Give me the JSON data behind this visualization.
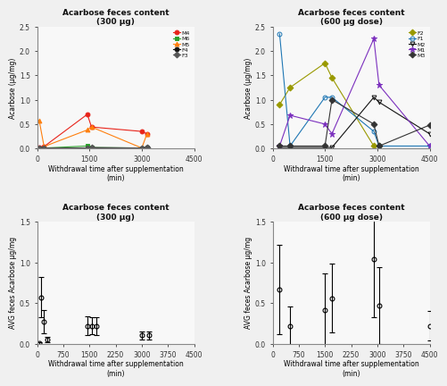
{
  "fig_bg": "#f0f0f0",
  "top_left": {
    "title": "Acarbose feces content\n(300 µg)",
    "xlabel": "Withdrawal time after supplementation\n(min)",
    "ylabel": "Acarbose (µg/mg)",
    "xlim": [
      0,
      4500
    ],
    "ylim": [
      0,
      2.5
    ],
    "yticks": [
      0.0,
      0.5,
      1.0,
      1.5,
      2.0,
      2.5
    ],
    "xticks": [
      0,
      1500,
      3000,
      4500
    ],
    "animals": {
      "M4": {
        "color": "#e8231a",
        "marker": "o",
        "filled": true,
        "x": [
          60,
          200,
          1440,
          1560,
          3000,
          3150
        ],
        "y": [
          0.02,
          0.04,
          0.7,
          0.44,
          0.35,
          0.3
        ]
      },
      "M6": {
        "color": "#2ca02c",
        "marker": "s",
        "filled": true,
        "x": [
          60,
          200,
          1440,
          1560,
          3000,
          3150
        ],
        "y": [
          0.01,
          0.01,
          0.05,
          0.02,
          0.01,
          0.02
        ]
      },
      "M5": {
        "color": "#ff7f0e",
        "marker": "^",
        "filled": true,
        "x": [
          60,
          200,
          1440,
          1560,
          3000,
          3150
        ],
        "y": [
          0.58,
          0.04,
          0.38,
          0.44,
          0.01,
          0.3
        ]
      },
      "F4": {
        "color": "#111111",
        "marker": "o",
        "filled": true,
        "x": [
          60,
          200,
          1440,
          1560,
          3000,
          3150
        ],
        "y": [
          0.01,
          0.01,
          0.01,
          0.01,
          0.01,
          0.02
        ]
      },
      "F3": {
        "color": "#555555",
        "marker": "D",
        "filled": true,
        "x": [
          60,
          200,
          1440,
          1560,
          3000,
          3150
        ],
        "y": [
          0.01,
          0.01,
          0.01,
          0.02,
          0.01,
          0.02
        ]
      }
    }
  },
  "top_right": {
    "title": "Acarbose feces content\n(600 µg dose)",
    "xlabel": "Withdrawal time after supplementation\n(min)",
    "ylabel": "Acarbose (µg/mg)",
    "xlim": [
      0,
      4500
    ],
    "ylim": [
      0,
      2.5
    ],
    "yticks": [
      0.0,
      0.5,
      1.0,
      1.5,
      2.0,
      2.5
    ],
    "xticks": [
      0,
      1500,
      3000,
      4500
    ],
    "animals": {
      "F2": {
        "color": "#999900",
        "marker": "D",
        "filled": true,
        "x": [
          200,
          500,
          1500,
          1700,
          2900,
          3050
        ],
        "y": [
          0.9,
          1.25,
          1.75,
          1.45,
          0.05,
          0.05
        ]
      },
      "F1": {
        "color": "#1f77b4",
        "marker": "o",
        "filled": false,
        "x": [
          200,
          500,
          1500,
          1700,
          2900,
          3050,
          4500
        ],
        "y": [
          2.35,
          0.05,
          1.05,
          1.05,
          0.35,
          0.05,
          0.05
        ]
      },
      "M2": {
        "color": "#111111",
        "marker": "v",
        "filled": false,
        "x": [
          200,
          500,
          1500,
          1700,
          2900,
          3050,
          4500
        ],
        "y": [
          0.02,
          0.02,
          0.02,
          0.02,
          1.05,
          0.95,
          0.3
        ]
      },
      "M1": {
        "color": "#7b2fbe",
        "marker": "*",
        "filled": true,
        "x": [
          200,
          500,
          1500,
          1700,
          2900,
          3050,
          4500
        ],
        "y": [
          0.05,
          0.68,
          0.5,
          0.3,
          2.25,
          1.3,
          0.05
        ]
      },
      "M3": {
        "color": "#333333",
        "marker": "D",
        "filled": true,
        "x": [
          200,
          500,
          1500,
          1700,
          2900,
          3050,
          4500
        ],
        "y": [
          0.05,
          0.05,
          0.05,
          1.0,
          0.5,
          0.05,
          0.48
        ]
      }
    }
  },
  "bottom_left": {
    "title": "Acarbose feces content\n(300 µg)",
    "xlabel": "Withdrawal time after supplementation\n(min)",
    "ylabel": "AVG feces Acarbose µg/mg",
    "xlim": [
      0,
      4500
    ],
    "ylim": [
      0,
      1.5
    ],
    "yticks": [
      0.0,
      0.5,
      1.0,
      1.5
    ],
    "xticks": [
      0,
      750,
      1500,
      2250,
      3000,
      3750,
      4500
    ],
    "x": [
      60,
      120,
      200,
      300,
      1440,
      1560,
      1700,
      3000,
      3200
    ],
    "y": [
      0.01,
      0.57,
      0.27,
      0.05,
      0.22,
      0.22,
      0.22,
      0.1,
      0.1
    ],
    "yerr": [
      0.01,
      0.25,
      0.14,
      0.03,
      0.12,
      0.1,
      0.11,
      0.05,
      0.05
    ]
  },
  "bottom_right": {
    "title": "Acarbose feces content\n(600 µg dose)",
    "xlabel": "Withdrawal time after supplementation\n(min)",
    "ylabel": "AVG feces Acarbose µg/mg",
    "xlim": [
      0,
      4500
    ],
    "ylim": [
      0,
      1.5
    ],
    "yticks": [
      0.0,
      0.5,
      1.0,
      1.5
    ],
    "xticks": [
      0,
      750,
      1500,
      2250,
      3000,
      3750,
      4500
    ],
    "x": [
      200,
      500,
      1500,
      1700,
      2900,
      3050,
      4500
    ],
    "y": [
      0.67,
      0.21,
      0.41,
      0.56,
      1.04,
      0.47,
      0.22
    ],
    "yerr": [
      0.55,
      0.25,
      0.45,
      0.42,
      0.72,
      0.47,
      0.18
    ]
  }
}
